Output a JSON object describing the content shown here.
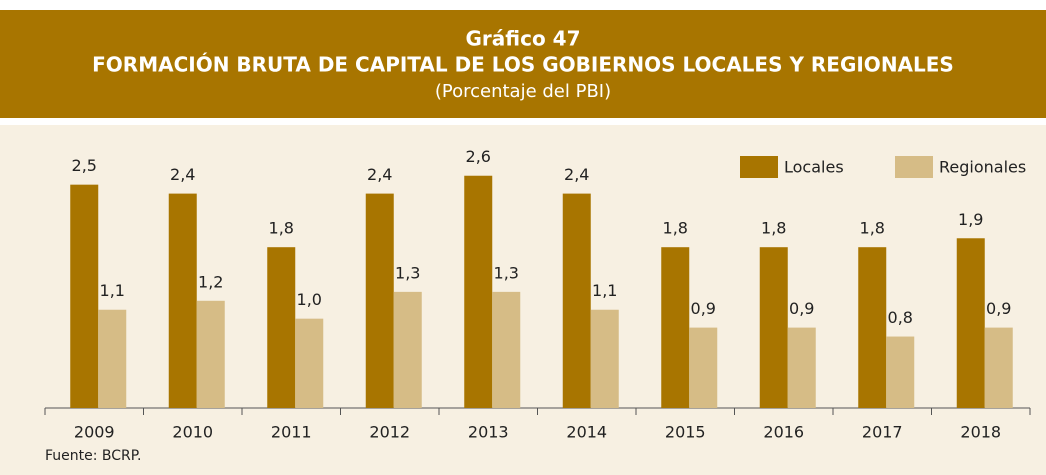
{
  "chart_data": {
    "type": "bar",
    "title": "Gráfico 47",
    "subtitle": "FORMACIÓN BRUTA DE CAPITAL DE LOS GOBIERNOS LOCALES Y REGIONALES",
    "unit_note": "(Porcentaje del PBI)",
    "source": "Fuente: BCRP.",
    "categories": [
      "2009",
      "2010",
      "2011",
      "2012",
      "2013",
      "2014",
      "2015",
      "2016",
      "2017",
      "2018"
    ],
    "series": [
      {
        "name": "Locales",
        "color": "#a87500",
        "values": [
          2.5,
          2.4,
          1.8,
          2.4,
          2.6,
          2.4,
          1.8,
          1.8,
          1.8,
          1.9
        ],
        "value_labels": [
          "2,5",
          "2,4",
          "1,8",
          "2,4",
          "2,6",
          "2,4",
          "1,8",
          "1,8",
          "1,8",
          "1,9"
        ]
      },
      {
        "name": "Regionales",
        "color": "#d6bc86",
        "values": [
          1.1,
          1.2,
          1.0,
          1.3,
          1.3,
          1.1,
          0.9,
          0.9,
          0.8,
          0.9
        ],
        "value_labels": [
          "1,1",
          "1,2",
          "1,0",
          "1,3",
          "1,3",
          "1,1",
          "0,9",
          "0,9",
          "0,8",
          "0,9"
        ]
      }
    ],
    "ylim": [
      0,
      3
    ],
    "legend": "top-right"
  }
}
